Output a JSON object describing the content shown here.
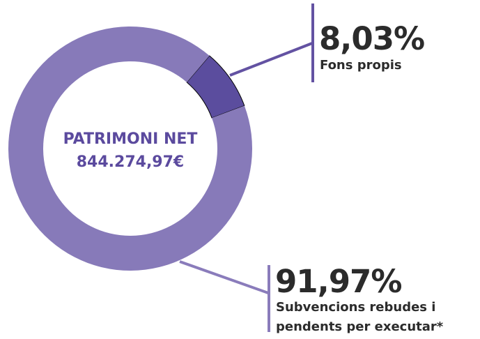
{
  "chart_data": {
    "type": "pie",
    "donut": true,
    "center_title": "PATRIMONI NET",
    "center_value": "844.274,97€",
    "categories": [
      "Fons propis",
      "Subvencions rebudes i pendents per executar*"
    ],
    "values": [
      8.03,
      91.97
    ],
    "value_labels": [
      "8,03%",
      "91,97%"
    ],
    "colors": [
      "#5b4d9e",
      "#877ab9"
    ]
  }
}
